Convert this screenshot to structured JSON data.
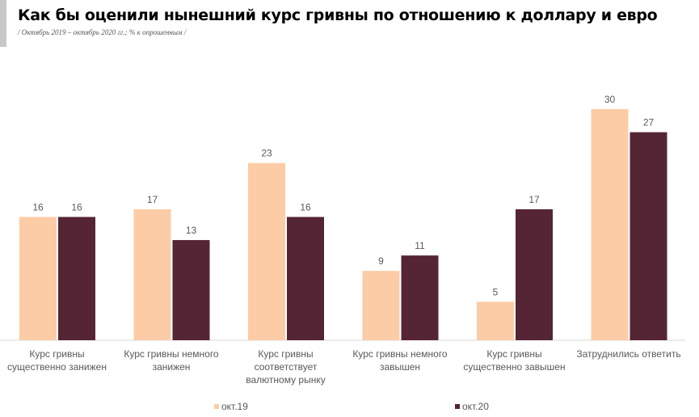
{
  "title": "Как бы оценили нынешний курс гривны по отношению к доллару и евро",
  "subtitle": "/ Октябрь 2019 – октябрь 2020 гг.; % к опрошенным /",
  "chart_data": {
    "type": "bar",
    "title": "Как бы оценили нынешний курс гривны по отношению к доллару и евро",
    "categories": [
      [
        "Курс гривны",
        "существенно занижен"
      ],
      [
        "Курс гривны немного",
        "занижен"
      ],
      [
        "Курс гривны",
        "соответствует",
        "валютному рынку"
      ],
      [
        "Курс гривны немного",
        "завышен"
      ],
      [
        "Курс гривны",
        "существенно завышен"
      ],
      [
        "Затруднились ответить"
      ]
    ],
    "series": [
      {
        "name": "окт.19",
        "color": "#fccca6",
        "values": [
          16,
          17,
          23,
          9,
          5,
          30
        ]
      },
      {
        "name": "окт.20",
        "color": "#552535",
        "values": [
          16,
          13,
          16,
          11,
          17,
          27
        ]
      }
    ],
    "ylim": [
      0,
      30
    ],
    "grid": false,
    "legend": "bottom"
  }
}
